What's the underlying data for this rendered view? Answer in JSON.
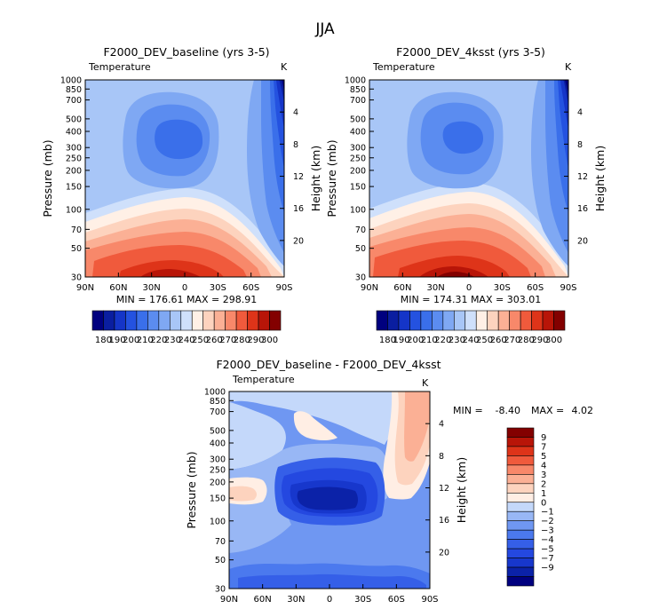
{
  "season": "JJA",
  "colors": {
    "abs": [
      "#00007f",
      "#0a1ea0",
      "#1535c8",
      "#2452e0",
      "#3a6fea",
      "#5b8cf0",
      "#7fa8f3",
      "#a8c6f7",
      "#cfe0fb",
      "#fff0e6",
      "#fdd3be",
      "#fbb095",
      "#f8886a",
      "#f05a3c",
      "#de3419",
      "#b81508",
      "#830000"
    ],
    "diff": [
      "#00007f",
      "#0b22a8",
      "#1737cc",
      "#2448e0",
      "#355fe8",
      "#4b79ee",
      "#6f97f2",
      "#98b7f5",
      "#c4d8fa",
      "#ffeee4",
      "#fdd3be",
      "#fbb095",
      "#f8886a",
      "#f05a3c",
      "#de3419",
      "#b81508",
      "#830000"
    ]
  },
  "chart_data": [
    {
      "type": "heatmap",
      "id": "baseline",
      "title": "F2000_DEV_baseline (yrs 3-5)",
      "variable_label": "Temperature",
      "units": "K",
      "ylabel_left": "Pressure (mb)",
      "ylabel_right": "Height (km)",
      "x_ticks": [
        "90N",
        "60N",
        "30N",
        "0",
        "30S",
        "60S",
        "90S"
      ],
      "pressure_ticks": [
        "30",
        "50",
        "70",
        "100",
        "150",
        "200",
        "250",
        "300",
        "400",
        "500",
        "700",
        "850",
        "1000"
      ],
      "height_ticks": [
        "4",
        "8",
        "12",
        "16",
        "20"
      ],
      "stats_text": "MIN = 176.61   MAX = 298.91",
      "min": 176.61,
      "max": 298.91,
      "colorbar_labels": [
        "180",
        "190",
        "200",
        "210",
        "220",
        "230",
        "240",
        "250",
        "260",
        "270",
        "280",
        "290",
        "300"
      ],
      "levels": [
        180,
        185,
        190,
        195,
        200,
        205,
        210,
        220,
        230,
        240,
        250,
        260,
        270,
        280,
        290,
        295,
        300
      ]
    },
    {
      "type": "heatmap",
      "id": "4ksst",
      "title": "F2000_DEV_4ksst (yrs 3-5)",
      "variable_label": "Temperature",
      "units": "K",
      "ylabel_left": "Pressure (mb)",
      "ylabel_right": "Height (km)",
      "x_ticks": [
        "90N",
        "60N",
        "30N",
        "0",
        "30S",
        "60S",
        "90S"
      ],
      "pressure_ticks": [
        "30",
        "50",
        "70",
        "100",
        "150",
        "200",
        "250",
        "300",
        "400",
        "500",
        "700",
        "850",
        "1000"
      ],
      "height_ticks": [
        "4",
        "8",
        "12",
        "16",
        "20"
      ],
      "stats_text": "MIN = 174.31   MAX = 303.01",
      "min": 174.31,
      "max": 303.01,
      "colorbar_labels": [
        "180",
        "190",
        "200",
        "210",
        "220",
        "230",
        "240",
        "250",
        "260",
        "270",
        "280",
        "290",
        "300"
      ],
      "levels": [
        180,
        185,
        190,
        195,
        200,
        205,
        210,
        220,
        230,
        240,
        250,
        260,
        270,
        280,
        290,
        295,
        300
      ]
    },
    {
      "type": "heatmap",
      "id": "difference",
      "title": "F2000_DEV_baseline - F2000_DEV_4ksst",
      "variable_label": "Temperature",
      "units": "K",
      "ylabel_left": "Pressure (mb)",
      "ylabel_right": "Height (km)",
      "x_ticks": [
        "90N",
        "60N",
        "30N",
        "0",
        "30S",
        "60S",
        "90S"
      ],
      "pressure_ticks": [
        "30",
        "50",
        "70",
        "100",
        "150",
        "200",
        "250",
        "300",
        "400",
        "500",
        "700",
        "850",
        "1000"
      ],
      "height_ticks": [
        "4",
        "8",
        "12",
        "16",
        "20"
      ],
      "min_label": "MIN =",
      "min_value": "-8.40",
      "max_label": "MAX =",
      "max_value": "4.02",
      "min": -8.4,
      "max": 4.02,
      "colorbar_labels": [
        "9",
        "7",
        "5",
        "4",
        "3",
        "2",
        "1",
        "0",
        "−1",
        "−2",
        "−3",
        "−4",
        "−5",
        "−7",
        "−9"
      ]
    }
  ]
}
